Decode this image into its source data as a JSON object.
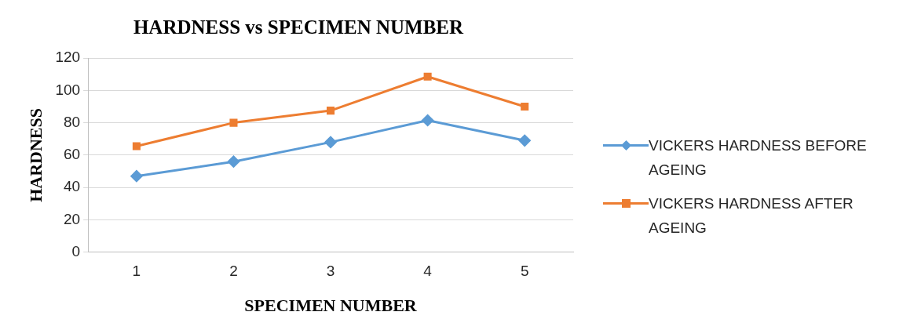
{
  "chart_data": {
    "type": "line",
    "title": "HARDNESS vs SPECIMEN NUMBER",
    "xlabel": "SPECIMEN NUMBER",
    "ylabel": "HARDNESS",
    "categories": [
      "1",
      "2",
      "3",
      "4",
      "5"
    ],
    "series": [
      {
        "name": "VICKERS HARDNESS BEFORE AGEING",
        "color": "#5b9bd5",
        "marker": "diamond",
        "values": [
          47,
          56,
          68,
          81.5,
          69
        ]
      },
      {
        "name": "VICKERS HARDNESS AFTER AGEING",
        "color": "#ed7d31",
        "marker": "square",
        "values": [
          65.5,
          80,
          87.5,
          108.5,
          90
        ]
      }
    ],
    "ylim": [
      0,
      120
    ],
    "yticks": [
      0,
      20,
      40,
      60,
      80,
      100,
      120
    ],
    "grid": "y",
    "legend": "right"
  }
}
